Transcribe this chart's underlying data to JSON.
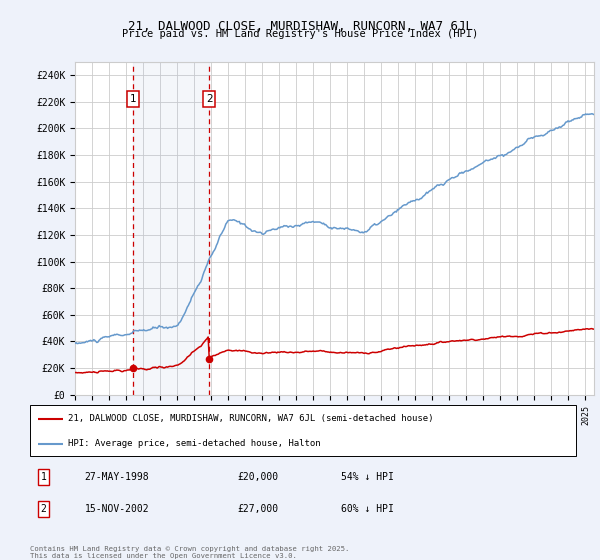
{
  "title_line1": "21, DALWOOD CLOSE, MURDISHAW, RUNCORN, WA7 6JL",
  "title_line2": "Price paid vs. HM Land Registry's House Price Index (HPI)",
  "hpi_color": "#6699cc",
  "price_color": "#cc0000",
  "legend_label_price": "21, DALWOOD CLOSE, MURDISHAW, RUNCORN, WA7 6JL (semi-detached house)",
  "legend_label_hpi": "HPI: Average price, semi-detached house, Halton",
  "purchase1_date": 1998.41,
  "purchase1_price": 20000,
  "purchase2_date": 2002.88,
  "purchase2_price": 27000,
  "table_entries": [
    [
      "1",
      "27-MAY-1998",
      "£20,000",
      "54% ↓ HPI"
    ],
    [
      "2",
      "15-NOV-2002",
      "£27,000",
      "60% ↓ HPI"
    ]
  ],
  "footnote": "Contains HM Land Registry data © Crown copyright and database right 2025.\nThis data is licensed under the Open Government Licence v3.0.",
  "background_color": "#eef2fa",
  "plot_bg_color": "#ffffff",
  "xmin": 1995,
  "xmax": 2025.5,
  "ylim": [
    0,
    250000
  ],
  "yticks": [
    0,
    20000,
    40000,
    60000,
    80000,
    100000,
    120000,
    140000,
    160000,
    180000,
    200000,
    220000,
    240000
  ],
  "ytick_labels": [
    "£0",
    "£20K",
    "£40K",
    "£60K",
    "£80K",
    "£100K",
    "£120K",
    "£140K",
    "£160K",
    "£180K",
    "£200K",
    "£220K",
    "£240K"
  ]
}
